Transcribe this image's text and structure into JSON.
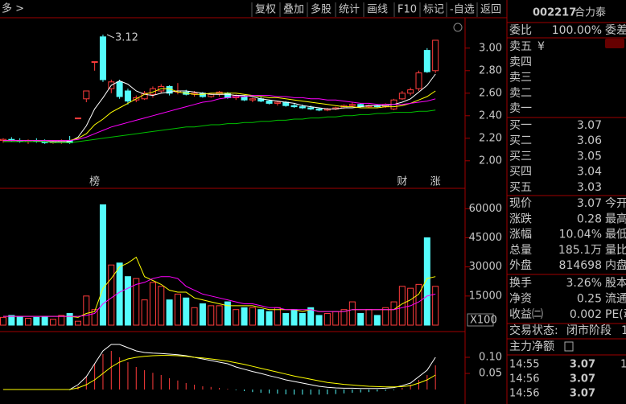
{
  "toolbar": {
    "left": "多 >",
    "buttons": [
      "复权",
      "叠加",
      "多股",
      "统计",
      "画线",
      "F10",
      "标记",
      "-自选",
      "返回"
    ]
  },
  "chart_data": [
    {
      "type": "candlestick",
      "up_color": "#ff3c3c",
      "down_color": "#54fcfc",
      "open": [
        2.18,
        2.19,
        2.18,
        2.17,
        2.18,
        2.17,
        2.16,
        2.17,
        2.18,
        2.38,
        2.55,
        2.88,
        3.1,
        2.64,
        2.7,
        2.62,
        2.54,
        2.55,
        2.59,
        2.62,
        2.66,
        2.61,
        2.61,
        2.59,
        2.6,
        2.57,
        2.59,
        2.6,
        2.56,
        2.57,
        2.54,
        2.55,
        2.53,
        2.51,
        2.52,
        2.49,
        2.48,
        2.47,
        2.46,
        2.45,
        2.46,
        2.47,
        2.49,
        2.5,
        2.48,
        2.49,
        2.48,
        2.46,
        2.55,
        2.6,
        2.64,
        2.98,
        2.8
      ],
      "high": [
        2.2,
        2.21,
        2.2,
        2.19,
        2.2,
        2.19,
        2.18,
        2.19,
        2.22,
        2.38,
        2.62,
        2.88,
        3.12,
        2.72,
        2.72,
        2.64,
        2.58,
        2.62,
        2.66,
        2.68,
        2.67,
        2.69,
        2.63,
        2.62,
        2.61,
        2.6,
        2.62,
        2.61,
        2.59,
        2.58,
        2.56,
        2.57,
        2.54,
        2.53,
        2.53,
        2.51,
        2.5,
        2.49,
        2.47,
        2.47,
        2.48,
        2.5,
        2.52,
        2.51,
        2.5,
        2.5,
        2.51,
        2.55,
        2.62,
        2.65,
        2.8,
        3.0,
        3.07
      ],
      "low": [
        2.16,
        2.17,
        2.16,
        2.15,
        2.16,
        2.15,
        2.15,
        2.15,
        2.15,
        2.38,
        2.52,
        2.8,
        2.7,
        2.6,
        2.55,
        2.5,
        2.52,
        2.54,
        2.56,
        2.6,
        2.58,
        2.59,
        2.58,
        2.57,
        2.56,
        2.56,
        2.57,
        2.55,
        2.54,
        2.53,
        2.52,
        2.52,
        2.5,
        2.49,
        2.48,
        2.47,
        2.46,
        2.45,
        2.44,
        2.44,
        2.45,
        2.46,
        2.48,
        2.47,
        2.47,
        2.47,
        2.47,
        2.45,
        2.54,
        2.58,
        2.62,
        2.78,
        2.78
      ],
      "close": [
        2.19,
        2.18,
        2.17,
        2.18,
        2.17,
        2.16,
        2.17,
        2.18,
        2.16,
        2.38,
        2.62,
        2.88,
        2.72,
        2.7,
        2.57,
        2.53,
        2.56,
        2.6,
        2.64,
        2.66,
        2.6,
        2.62,
        2.59,
        2.6,
        2.57,
        2.59,
        2.61,
        2.56,
        2.58,
        2.54,
        2.55,
        2.53,
        2.51,
        2.52,
        2.49,
        2.48,
        2.47,
        2.46,
        2.45,
        2.46,
        2.47,
        2.49,
        2.5,
        2.48,
        2.49,
        2.48,
        2.5,
        2.54,
        2.6,
        2.63,
        2.78,
        2.79,
        3.07
      ],
      "series": [
        {
          "color": "#ffffff",
          "values": [
            2.18,
            2.18,
            2.18,
            2.18,
            2.18,
            2.17,
            2.17,
            2.17,
            2.17,
            2.21,
            2.31,
            2.46,
            2.56,
            2.67,
            2.71,
            2.68,
            2.62,
            2.59,
            2.58,
            2.6,
            2.61,
            2.62,
            2.62,
            2.61,
            2.6,
            2.59,
            2.59,
            2.59,
            2.58,
            2.58,
            2.57,
            2.55,
            2.54,
            2.53,
            2.52,
            2.51,
            2.49,
            2.48,
            2.47,
            2.46,
            2.46,
            2.47,
            2.47,
            2.48,
            2.49,
            2.49,
            2.49,
            2.5,
            2.52,
            2.55,
            2.61,
            2.67,
            2.77
          ]
        },
        {
          "color": "#ffff00",
          "values": [
            2.18,
            2.18,
            2.18,
            2.18,
            2.18,
            2.18,
            2.18,
            2.18,
            2.18,
            2.2,
            2.24,
            2.32,
            2.37,
            2.43,
            2.47,
            2.51,
            2.55,
            2.59,
            2.61,
            2.64,
            2.64,
            2.61,
            2.6,
            2.59,
            2.59,
            2.6,
            2.6,
            2.6,
            2.6,
            2.59,
            2.58,
            2.57,
            2.56,
            2.56,
            2.55,
            2.54,
            2.53,
            2.52,
            2.51,
            2.5,
            2.49,
            2.48,
            2.48,
            2.47,
            2.47,
            2.47,
            2.48,
            2.48,
            2.49,
            2.51,
            2.54,
            2.57,
            2.62
          ]
        },
        {
          "color": "#ff00ff",
          "values": [
            2.18,
            2.18,
            2.18,
            2.18,
            2.18,
            2.18,
            2.18,
            2.18,
            2.18,
            2.19,
            2.21,
            2.24,
            2.27,
            2.3,
            2.32,
            2.34,
            2.36,
            2.38,
            2.4,
            2.42,
            2.44,
            2.46,
            2.48,
            2.5,
            2.52,
            2.53,
            2.55,
            2.56,
            2.57,
            2.57,
            2.58,
            2.58,
            2.58,
            2.57,
            2.57,
            2.56,
            2.56,
            2.55,
            2.55,
            2.54,
            2.54,
            2.53,
            2.52,
            2.51,
            2.51,
            2.5,
            2.5,
            2.5,
            2.5,
            2.51,
            2.52,
            2.53,
            2.55
          ]
        },
        {
          "color": "#00c000",
          "values": [
            2.17,
            2.17,
            2.17,
            2.17,
            2.17,
            2.17,
            2.16,
            2.16,
            2.16,
            2.17,
            2.18,
            2.19,
            2.2,
            2.21,
            2.22,
            2.23,
            2.24,
            2.25,
            2.26,
            2.27,
            2.28,
            2.29,
            2.3,
            2.3,
            2.31,
            2.32,
            2.32,
            2.33,
            2.33,
            2.34,
            2.34,
            2.35,
            2.35,
            2.36,
            2.36,
            2.37,
            2.37,
            2.38,
            2.38,
            2.39,
            2.39,
            2.4,
            2.4,
            2.41,
            2.41,
            2.42,
            2.42,
            2.43,
            2.43,
            2.43,
            2.44,
            2.44,
            2.45
          ]
        }
      ],
      "events": [
        null,
        null,
        null,
        null,
        null,
        null,
        null,
        null,
        null,
        null,
        null,
        {
          "label": "榜",
          "color": "#ff9a2e"
        },
        null,
        null,
        null,
        null,
        null,
        null,
        null,
        null,
        null,
        null,
        null,
        null,
        null,
        null,
        null,
        null,
        null,
        null,
        null,
        null,
        null,
        null,
        null,
        null,
        null,
        null,
        null,
        null,
        null,
        null,
        null,
        null,
        null,
        null,
        null,
        null,
        {
          "label": "财",
          "color": "#7ab8ff"
        },
        null,
        null,
        null,
        {
          "label": "涨",
          "color": "#ff4040"
        }
      ],
      "ylim": [
        1.77,
        3.27
      ],
      "yticks": [
        {
          "value": 2,
          "label": "2.00"
        },
        {
          "value": 2.2,
          "label": "2.20"
        },
        {
          "value": 2.4,
          "label": "2.40"
        },
        {
          "value": 2.6,
          "label": "2.60"
        },
        {
          "value": 2.8,
          "label": "2.80"
        },
        {
          "value": 3,
          "label": "3.00"
        }
      ]
    },
    {
      "type": "volume",
      "unit_label": "X100",
      "values": [
        4000,
        5000,
        4500,
        3500,
        4000,
        4500,
        3000,
        5000,
        6000,
        2000,
        15000,
        8000,
        62000,
        31000,
        32000,
        25000,
        24000,
        13000,
        22000,
        20000,
        13000,
        16000,
        14000,
        9000,
        11000,
        10000,
        10000,
        12000,
        8000,
        9000,
        9000,
        8000,
        7000,
        9000,
        6000,
        8000,
        6000,
        9000,
        5000,
        6000,
        7000,
        8000,
        12000,
        6000,
        8000,
        5000,
        9000,
        12000,
        20000,
        19000,
        21000,
        45000,
        20000
      ],
      "series": [
        {
          "color": "#ffff00",
          "values": [
            4500,
            4500,
            4500,
            4500,
            4500,
            4500,
            4500,
            4500,
            4500,
            4000,
            6000,
            7000,
            19000,
            24000,
            30000,
            32000,
            35000,
            25000,
            23000,
            21000,
            18000,
            17000,
            17000,
            14000,
            13000,
            12000,
            11000,
            10000,
            10000,
            10000,
            10000,
            9000,
            8000,
            8000,
            8000,
            8000,
            7000,
            8000,
            7000,
            7000,
            7000,
            7000,
            8000,
            8000,
            8000,
            8000,
            8000,
            8000,
            11000,
            13000,
            16000,
            24000,
            25000
          ]
        },
        {
          "color": "#ff00ff",
          "values": [
            4500,
            4500,
            4500,
            4500,
            4500,
            4500,
            4500,
            4500,
            4500,
            4500,
            5000,
            6000,
            11000,
            14000,
            17000,
            19000,
            21000,
            22000,
            24000,
            25000,
            25000,
            24000,
            20000,
            18000,
            16000,
            15000,
            14000,
            13000,
            12000,
            11000,
            11000,
            10000,
            9000,
            9000,
            8000,
            8000,
            8000,
            8000,
            7000,
            7000,
            7000,
            7000,
            8000,
            8000,
            8000,
            8000,
            8000,
            8000,
            9000,
            10000,
            12000,
            15000,
            16000
          ]
        }
      ],
      "ylim": [
        0,
        68000
      ],
      "yticks": [
        15000,
        30000,
        45000,
        60000
      ]
    },
    {
      "type": "macd",
      "up_color": "#ff3c3c",
      "down_color": "#54fcfc",
      "values": [
        0.001,
        0.001,
        0,
        0,
        -0.001,
        -0.001,
        -0.001,
        -0.001,
        -0.002,
        0.01,
        0.04,
        0.08,
        0.11,
        0.12,
        0.1,
        0.085,
        0.07,
        0.06,
        0.052,
        0.045,
        0.035,
        0.028,
        0.02,
        0.015,
        0.01,
        0.008,
        0.005,
        0.002,
        -0.002,
        -0.005,
        -0.008,
        -0.01,
        -0.012,
        -0.013,
        -0.015,
        -0.016,
        -0.016,
        -0.016,
        -0.016,
        -0.015,
        -0.014,
        -0.012,
        -0.01,
        -0.009,
        -0.008,
        -0.006,
        -0.004,
        -0.002,
        0.005,
        0.015,
        0.03,
        0.045,
        0.075
      ],
      "series": [
        {
          "color": "#ffffff",
          "values": [
            0,
            0,
            0,
            0,
            0,
            0,
            0,
            0,
            0,
            0.015,
            0.04,
            0.08,
            0.12,
            0.14,
            0.14,
            0.13,
            0.12,
            0.115,
            0.113,
            0.112,
            0.11,
            0.108,
            0.105,
            0.1,
            0.095,
            0.09,
            0.085,
            0.08,
            0.07,
            0.063,
            0.056,
            0.05,
            0.043,
            0.037,
            0.03,
            0.025,
            0.02,
            0.015,
            0.01,
            0.007,
            0.005,
            0.004,
            0.004,
            0.003,
            0.003,
            0.003,
            0.004,
            0.006,
            0.012,
            0.02,
            0.04,
            0.06,
            0.1
          ]
        },
        {
          "color": "#ffff00",
          "values": [
            0,
            0,
            0,
            0,
            0,
            0,
            0,
            0,
            0,
            0.005,
            0.015,
            0.03,
            0.05,
            0.07,
            0.085,
            0.095,
            0.1,
            0.103,
            0.105,
            0.106,
            0.106,
            0.105,
            0.103,
            0.1,
            0.098,
            0.095,
            0.092,
            0.088,
            0.083,
            0.078,
            0.072,
            0.066,
            0.06,
            0.054,
            0.048,
            0.042,
            0.037,
            0.032,
            0.027,
            0.022,
            0.019,
            0.016,
            0.014,
            0.012,
            0.01,
            0.009,
            0.008,
            0.008,
            0.009,
            0.012,
            0.02,
            0.03,
            0.045
          ]
        }
      ],
      "ylim": [
        -0.04,
        0.16
      ],
      "yticks": [
        {
          "value": 0.05,
          "label": "0.05"
        },
        {
          "value": 0.1,
          "label": "0.10"
        }
      ]
    }
  ],
  "quote": {
    "code": "002217",
    "name": "合力泰",
    "ratio": {
      "label": "委比",
      "value": "100.00%",
      "label2": "委差"
    },
    "sell": [
      {
        "label": "卖五",
        "mark": "¥"
      },
      {
        "label": "卖四"
      },
      {
        "label": "卖三"
      },
      {
        "label": "卖二"
      },
      {
        "label": "卖一"
      }
    ],
    "buy": [
      {
        "label": "买一",
        "price": "3.07"
      },
      {
        "label": "买二",
        "price": "3.06"
      },
      {
        "label": "买三",
        "price": "3.05"
      },
      {
        "label": "买四",
        "price": "3.04"
      },
      {
        "label": "买五",
        "price": "3.03"
      }
    ],
    "stats": [
      [
        "现价",
        "3.07",
        "今开"
      ],
      [
        "涨跌",
        "0.28",
        "最高"
      ],
      [
        "涨幅",
        "10.04%",
        "最低"
      ],
      [
        "总量",
        "185.1万",
        "量比"
      ],
      [
        "外盘",
        "814698",
        "内盘"
      ]
    ],
    "stats2": [
      [
        "换手",
        "3.26%",
        "股本"
      ],
      [
        "净资",
        "0.25",
        "流通"
      ],
      [
        "收益㈡",
        "0.002",
        "PE(动"
      ]
    ],
    "status": {
      "label": "交易状态:",
      "value": "闭市阶段",
      "extra": "1"
    },
    "flow": "主力净额",
    "ticks": [
      {
        "time": "14:55",
        "price": "3.07",
        "vol": "1"
      },
      {
        "time": "14:56",
        "price": "3.07"
      },
      {
        "time": "14:56",
        "price": "3.07"
      }
    ]
  }
}
